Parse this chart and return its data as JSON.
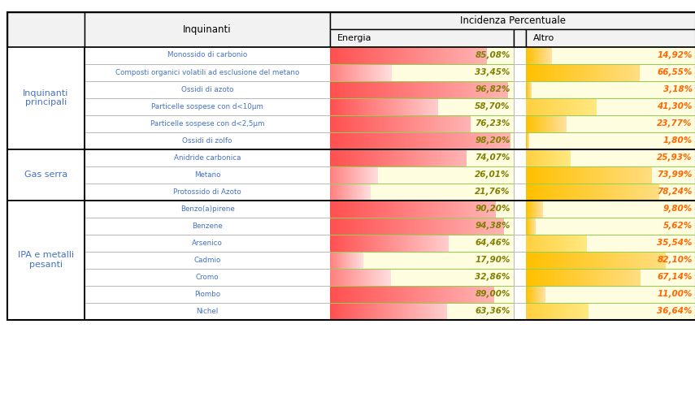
{
  "header_col1": "Inquinanti",
  "header_col2": "Incidenza Percentuale",
  "subheader_energia": "Energia",
  "subheader_altro": "Altro",
  "groups": [
    {
      "label": "Inquinanti\nprincipali",
      "rows": [
        {
          "name": "Monossido di carbonio",
          "energia": 85.08,
          "altro": 14.92
        },
        {
          "name": "Composti organici volatili ad esclusione del metano",
          "energia": 33.45,
          "altro": 66.55
        },
        {
          "name": "Ossidi di azoto",
          "energia": 96.82,
          "altro": 3.18
        },
        {
          "name": "Particelle sospese con d<10μm",
          "energia": 58.7,
          "altro": 41.3
        },
        {
          "name": "Particelle sospese con d<2,5μm",
          "energia": 76.23,
          "altro": 23.77
        },
        {
          "name": "Ossidi di zolfo",
          "energia": 98.2,
          "altro": 1.8
        }
      ]
    },
    {
      "label": "Gas serra",
      "rows": [
        {
          "name": "Anidride carbonica",
          "energia": 74.07,
          "altro": 25.93
        },
        {
          "name": "Metano",
          "energia": 26.01,
          "altro": 73.99
        },
        {
          "name": "Protossido di Azoto",
          "energia": 21.76,
          "altro": 78.24
        }
      ]
    },
    {
      "label": "IPA e metalli\npesanti",
      "rows": [
        {
          "name": "Benzo(a)pirene",
          "energia": 90.2,
          "altro": 9.8
        },
        {
          "name": "Benzene",
          "energia": 94.38,
          "altro": 5.62
        },
        {
          "name": "Arsenico",
          "energia": 64.46,
          "altro": 35.54
        },
        {
          "name": "Cadmio",
          "energia": 17.9,
          "altro": 82.1
        },
        {
          "name": "Cromo",
          "energia": 32.86,
          "altro": 67.14
        },
        {
          "name": "Piombo",
          "energia": 89.0,
          "altro": 11.0
        },
        {
          "name": "Nichel",
          "energia": 63.36,
          "altro": 36.64
        }
      ]
    }
  ],
  "background_color": "#ffffff",
  "row_name_color": "#4472c4",
  "group_label_color": "#4472c4",
  "energia_text_color": "#7f7f00",
  "altro_text_color": "#ff6600",
  "fig_width": 8.55,
  "fig_height": 5.0
}
